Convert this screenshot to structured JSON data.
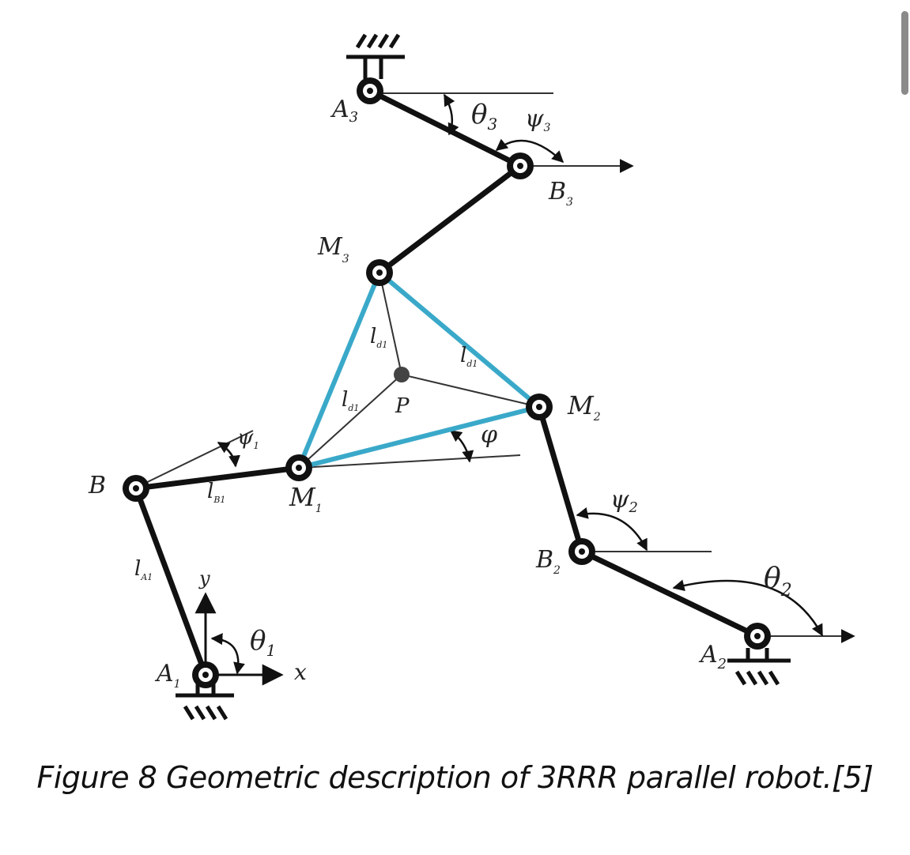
{
  "caption": "Figure 8 Geometric description of 3RRR parallel robot.[5]",
  "colors": {
    "link": "#111111",
    "platform": "#3aa9c9",
    "thin": "#333333"
  },
  "joints": {
    "A1": {
      "main": "A",
      "sub": "1"
    },
    "A2": {
      "main": "A",
      "sub": "2"
    },
    "A3": {
      "main": "A",
      "sub": "3"
    },
    "B1": {
      "main": "B",
      "sub": ""
    },
    "B2": {
      "main": "B",
      "sub": "2"
    },
    "B3": {
      "main": "B",
      "sub": "3"
    },
    "M1": {
      "main": "M",
      "sub": "1"
    },
    "M2": {
      "main": "M",
      "sub": "2"
    },
    "M3": {
      "main": "M",
      "sub": "3"
    },
    "P": {
      "main": "P",
      "sub": ""
    }
  },
  "angles": {
    "theta1": {
      "main": "θ",
      "sub": "1"
    },
    "theta2": {
      "main": "θ",
      "sub": "2"
    },
    "theta3": {
      "main": "θ",
      "sub": "3"
    },
    "psi1": {
      "main": "ψ",
      "sub": "1"
    },
    "psi2": {
      "main": "ψ",
      "sub": "2"
    },
    "psi3": {
      "main": "ψ",
      "sub": "3"
    },
    "phi": {
      "main": "φ",
      "sub": ""
    }
  },
  "lengths": {
    "lA1": {
      "main": "l",
      "sub": "A1"
    },
    "lB1": {
      "main": "l",
      "sub": "B1"
    },
    "ld1_upper": {
      "main": "l",
      "sub": "d1"
    },
    "ld1_right": {
      "main": "l",
      "sub": "d1"
    },
    "ld1_lower": {
      "main": "l",
      "sub": "d1"
    }
  },
  "axes": {
    "x": "x",
    "y": "y"
  }
}
